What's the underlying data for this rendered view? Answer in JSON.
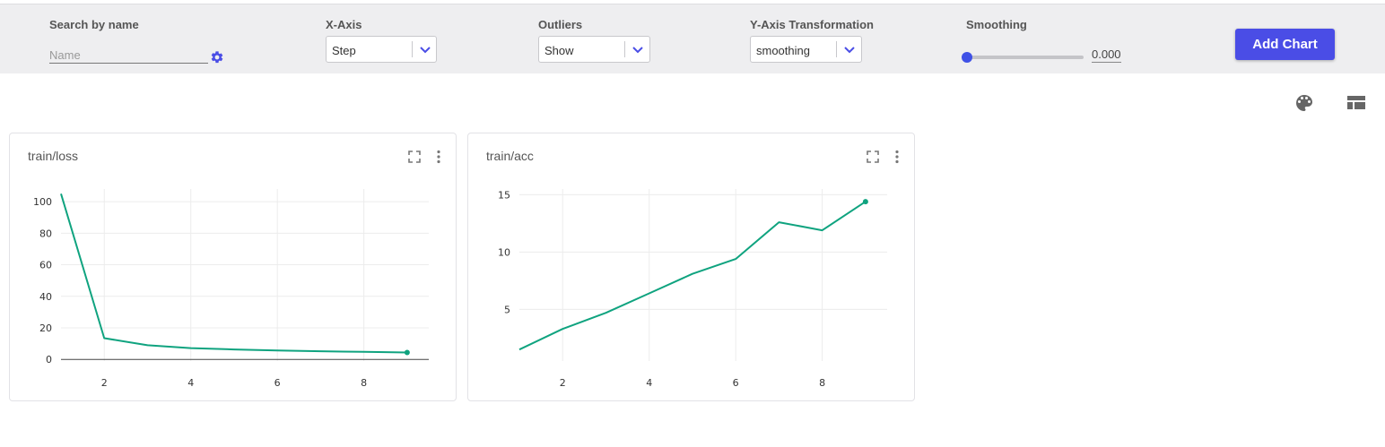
{
  "toolbar": {
    "search": {
      "label": "Search by name",
      "placeholder": "Name"
    },
    "xaxis": {
      "label": "X-Axis",
      "value": "Step"
    },
    "outliers": {
      "label": "Outliers",
      "value": "Show"
    },
    "ytransform": {
      "label": "Y-Axis Transformation",
      "value": "smoothing"
    },
    "smoothing": {
      "label": "Smoothing",
      "value": "0.000",
      "level": 0
    },
    "add_chart": "Add Chart"
  },
  "icons": {
    "settings": "gear-icon",
    "palette": "palette-icon",
    "layout": "table-layout-icon",
    "fullscreen": "fullscreen-icon",
    "menu": "more-vert-icon"
  },
  "colors": {
    "accent": "#4a4de6",
    "series": "#0fa37f"
  },
  "chart_data": [
    {
      "type": "line",
      "title": "train/loss",
      "x": [
        1,
        2,
        3,
        4,
        5,
        6,
        7,
        8,
        9
      ],
      "series": [
        {
          "values": [
            105,
            13.5,
            9,
            7.2,
            6.3,
            5.7,
            5.2,
            4.8,
            4.4
          ]
        }
      ],
      "xticks": [
        2,
        4,
        6,
        8
      ],
      "yticks": [
        0,
        20,
        40,
        60,
        80,
        100
      ],
      "xlim": [
        1,
        9.5
      ],
      "ylim": [
        -1,
        108
      ],
      "grid": true,
      "zero_line": true
    },
    {
      "type": "line",
      "title": "train/acc",
      "x": [
        1,
        2,
        3,
        4,
        5,
        6,
        7,
        8,
        9
      ],
      "series": [
        {
          "values": [
            1.5,
            3.3,
            4.7,
            6.4,
            8.1,
            9.4,
            12.6,
            11.9,
            14.4
          ]
        }
      ],
      "xticks": [
        2,
        4,
        6,
        8
      ],
      "yticks": [
        5,
        10,
        15
      ],
      "xlim": [
        1,
        9.5
      ],
      "ylim": [
        0.5,
        15.5
      ],
      "grid": true
    }
  ]
}
